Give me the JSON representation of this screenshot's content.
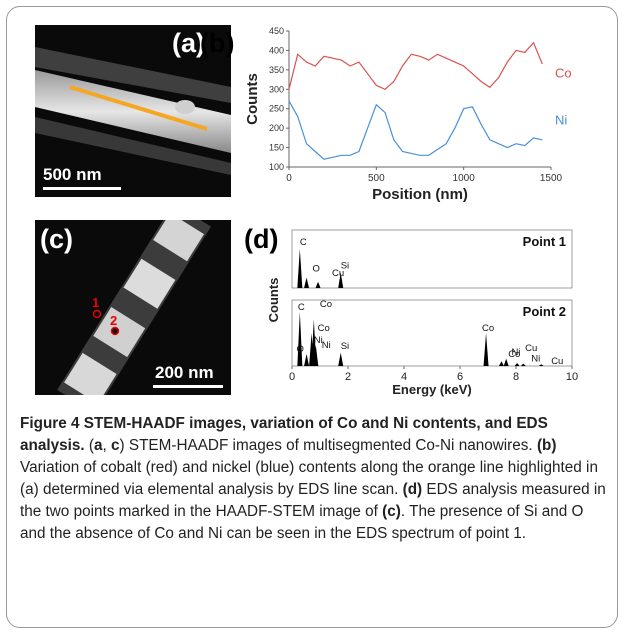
{
  "panels": {
    "a": {
      "label": "(a)",
      "scale": "500 nm"
    },
    "b": {
      "label": "(b)"
    },
    "c": {
      "label": "(c)",
      "scale": "200 nm",
      "point1": "1",
      "point2": "2"
    },
    "d": {
      "label": "(d)"
    }
  },
  "colors": {
    "co": "#d9534f",
    "ni": "#4a90d9",
    "line": "#f5a623"
  },
  "chart_data": [
    {
      "type": "line",
      "xlabel": "Position (nm)",
      "ylabel": "Counts",
      "xlim": [
        0,
        1500
      ],
      "ylim": [
        100,
        450
      ],
      "x_ticks": [
        "0",
        "500",
        "1000",
        "1500"
      ],
      "y_ticks": [
        "100",
        "150",
        "200",
        "250",
        "300",
        "350",
        "400",
        "450"
      ],
      "series": [
        {
          "name": "Co",
          "x": [
            0,
            50,
            100,
            150,
            200,
            250,
            300,
            350,
            400,
            450,
            500,
            550,
            600,
            650,
            700,
            750,
            800,
            850,
            900,
            950,
            1000,
            1050,
            1100,
            1150,
            1200,
            1250,
            1300,
            1350,
            1400,
            1450
          ],
          "y": [
            300,
            390,
            370,
            360,
            385,
            380,
            375,
            360,
            370,
            340,
            310,
            300,
            320,
            360,
            390,
            385,
            375,
            390,
            380,
            370,
            360,
            340,
            320,
            305,
            330,
            370,
            400,
            395,
            420,
            365
          ]
        },
        {
          "name": "Ni",
          "x": [
            0,
            50,
            100,
            150,
            200,
            250,
            300,
            350,
            400,
            450,
            500,
            550,
            600,
            650,
            700,
            750,
            800,
            850,
            900,
            950,
            1000,
            1050,
            1100,
            1150,
            1200,
            1250,
            1300,
            1350,
            1400,
            1450
          ],
          "y": [
            270,
            230,
            160,
            140,
            120,
            125,
            130,
            130,
            140,
            200,
            260,
            240,
            170,
            140,
            135,
            130,
            130,
            145,
            160,
            200,
            250,
            255,
            210,
            170,
            160,
            150,
            160,
            155,
            175,
            170
          ]
        }
      ]
    },
    {
      "type": "bar",
      "title": "Point 1",
      "xlabel": "Energy (keV)",
      "ylabel": "Counts",
      "xlim": [
        0,
        10
      ],
      "peaks": [
        {
          "label": "C",
          "energy": 0.28,
          "height": 0.75
        },
        {
          "label": "O",
          "energy": 0.52,
          "height": 0.2
        },
        {
          "label": "Cu",
          "energy": 0.93,
          "height": 0.12
        },
        {
          "label": "Si",
          "energy": 1.74,
          "height": 0.3
        }
      ]
    },
    {
      "type": "bar",
      "title": "Point 2",
      "xlabel": "Energy (keV)",
      "ylabel": "Counts",
      "xlim": [
        0,
        10
      ],
      "x_ticks": [
        "0",
        "2",
        "4",
        "6",
        "8",
        "10"
      ],
      "peaks": [
        {
          "label": "C",
          "energy": 0.28,
          "height": 0.9
        },
        {
          "label": "Co",
          "energy": 0.78,
          "height": 0.78
        },
        {
          "label": "Co",
          "energy": 0.7,
          "height": 0.55
        },
        {
          "label": "Ni",
          "energy": 0.85,
          "height": 0.35
        },
        {
          "label": "O",
          "energy": 0.52,
          "height": 0.2
        },
        {
          "label": "Ni",
          "energy": 0.85,
          "height": 0.2
        },
        {
          "label": "Si",
          "energy": 1.74,
          "height": 0.22
        },
        {
          "label": "Co",
          "energy": 6.93,
          "height": 0.55
        },
        {
          "label": "Ni",
          "energy": 7.48,
          "height": 0.08
        },
        {
          "label": "Cu",
          "energy": 8.04,
          "height": 0.05
        },
        {
          "label": "Co",
          "energy": 7.65,
          "height": 0.12
        },
        {
          "label": "Ni",
          "energy": 8.26,
          "height": 0.04
        },
        {
          "label": "Cu",
          "energy": 8.9,
          "height": 0.03
        }
      ]
    }
  ],
  "caption": {
    "bold": "Figure 4 STEM-HAADF images, variation of Co and Ni contents, and EDS analysis.",
    "s1": " (",
    "ac_a": "a",
    "s2": ", ",
    "ac_c": "c",
    "s3": ") STEM-HAADF images of multisegmented Co-Ni nanowires. ",
    "b_ref": "(b)",
    "s4": " Variation of cobalt (red) and nickel (blue) contents along the orange line highlighted in (a) determined via elemental analysis by EDS line scan. ",
    "d_ref": "(d)",
    "s5": " EDS analysis measured in the two points marked in the HAADF-STEM image of ",
    "c_ref": "(c)",
    "s6": ". The presence of Si and O and the absence of Co and Ni can be seen in the EDS spectrum of point 1."
  }
}
